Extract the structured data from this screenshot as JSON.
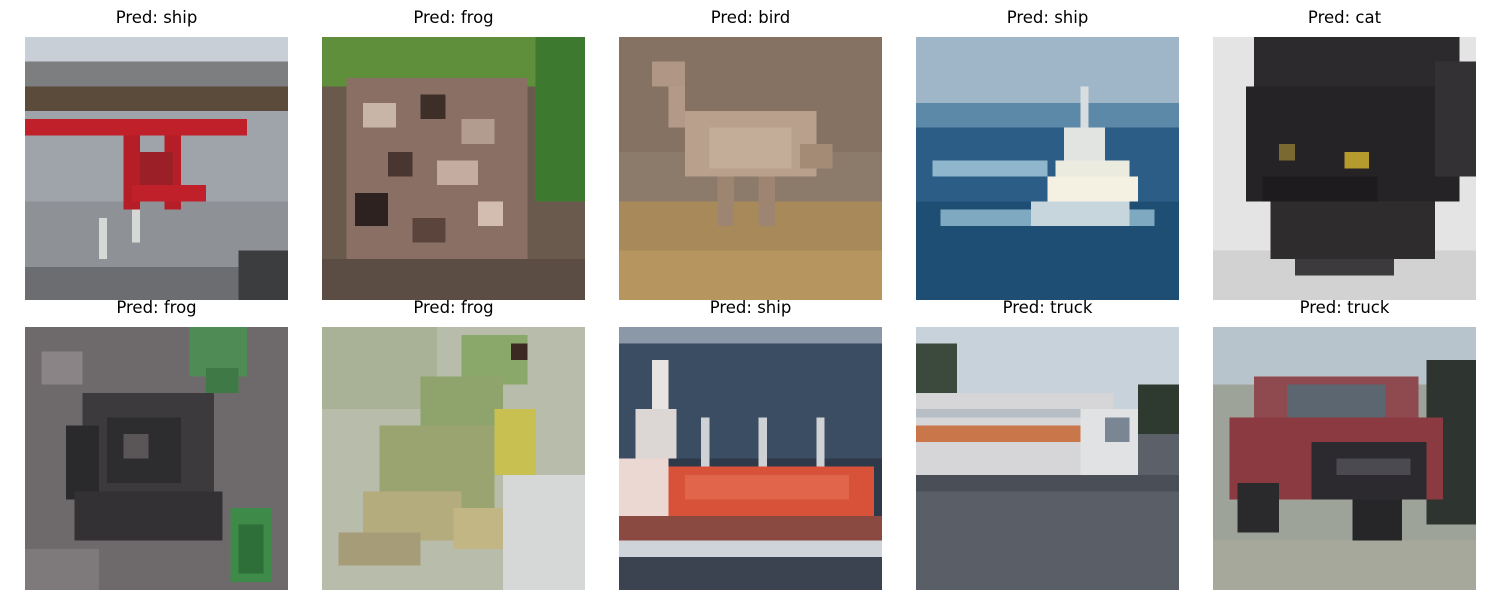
{
  "panels": [
    {
      "title": "Pred: ship",
      "subject": "red crane structure on a dock by the water"
    },
    {
      "title": "Pred: frog",
      "subject": "speckled brown frog against green leaves"
    },
    {
      "title": "Pred: bird",
      "subject": "tan ostrich-like bird on dry ground"
    },
    {
      "title": "Pred: ship",
      "subject": "white ship moving on blue sea"
    },
    {
      "title": "Pred: cat",
      "subject": "black cat face on white background"
    },
    {
      "title": "Pred: frog",
      "subject": "dark frog on gray textured surface with green leaves"
    },
    {
      "title": "Pred: frog",
      "subject": "green and yellow frog on light background"
    },
    {
      "title": "Pred: ship",
      "subject": "ship with red and white hull on dark water"
    },
    {
      "title": "Pred: truck",
      "subject": "white truck with orange stripe on road"
    },
    {
      "title": "Pred: truck",
      "subject": "red pickup truck on pavement"
    }
  ],
  "colors": {
    "background": "#ffffff",
    "title_text": "#000000"
  }
}
